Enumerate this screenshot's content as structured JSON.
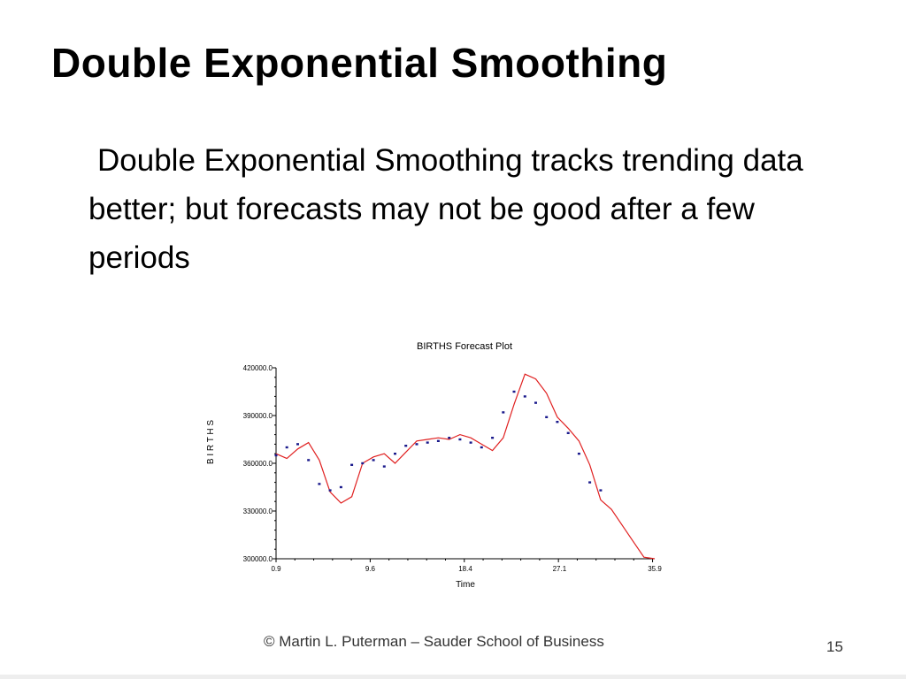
{
  "slide": {
    "title": "Double Exponential Smoothing",
    "body": "Double Exponential Smoothing tracks trending data better; but forecasts may not be good after a few periods",
    "footer": "© Martin L. Puterman – Sauder School of Business",
    "page_number": "15"
  },
  "chart_data": {
    "type": "line",
    "title": "BIRTHS Forecast Plot",
    "xlabel": "Time",
    "ylabel": "B I R T H S",
    "xlim": [
      0.9,
      35.9
    ],
    "ylim": [
      300000,
      420000
    ],
    "x_ticks": [
      "0.9",
      "9.6",
      "18.4",
      "27.1",
      "35.9"
    ],
    "y_ticks": [
      "300000.0",
      "330000.0",
      "360000.0",
      "390000.0",
      "420000.0"
    ],
    "series": [
      {
        "style": "line",
        "color": "#e02020",
        "x": [
          0.9,
          1.9,
          2.9,
          3.9,
          4.9,
          5.9,
          6.9,
          7.9,
          8.9,
          9.9,
          10.9,
          11.9,
          12.9,
          13.9,
          14.9,
          15.9,
          16.9,
          17.9,
          18.9,
          19.9,
          20.9,
          21.9,
          22.9,
          23.9,
          24.9,
          25.9,
          26.9,
          27.9,
          28.9,
          29.9,
          30.9,
          31.9,
          32.9,
          33.9,
          34.9,
          35.9
        ],
        "y": [
          366000,
          363000,
          369000,
          373000,
          362000,
          342000,
          335000,
          339000,
          360000,
          364000,
          366000,
          360000,
          367000,
          374000,
          375000,
          376000,
          375000,
          378000,
          376000,
          372000,
          368000,
          376000,
          397000,
          416000,
          413000,
          404000,
          389000,
          382000,
          374000,
          359000,
          337000,
          331000,
          321000,
          311000,
          301000,
          300000
        ]
      },
      {
        "style": "points",
        "color": "#1a1a8c",
        "x": [
          0.9,
          1.9,
          2.9,
          3.9,
          4.9,
          5.9,
          6.9,
          7.9,
          8.9,
          9.9,
          10.9,
          11.9,
          12.9,
          13.9,
          14.9,
          15.9,
          16.9,
          17.9,
          18.9,
          19.9,
          20.9,
          21.9,
          22.9,
          23.9,
          24.9,
          25.9,
          26.9,
          27.9,
          28.9,
          29.9,
          30.9
        ],
        "y": [
          365000,
          370000,
          372000,
          362000,
          347000,
          343000,
          345000,
          359000,
          360000,
          362000,
          358000,
          366000,
          371000,
          372000,
          373000,
          374000,
          376000,
          375000,
          373000,
          370000,
          376000,
          392000,
          405000,
          402000,
          398000,
          389000,
          386000,
          379000,
          366000,
          348000,
          343000
        ]
      }
    ]
  }
}
